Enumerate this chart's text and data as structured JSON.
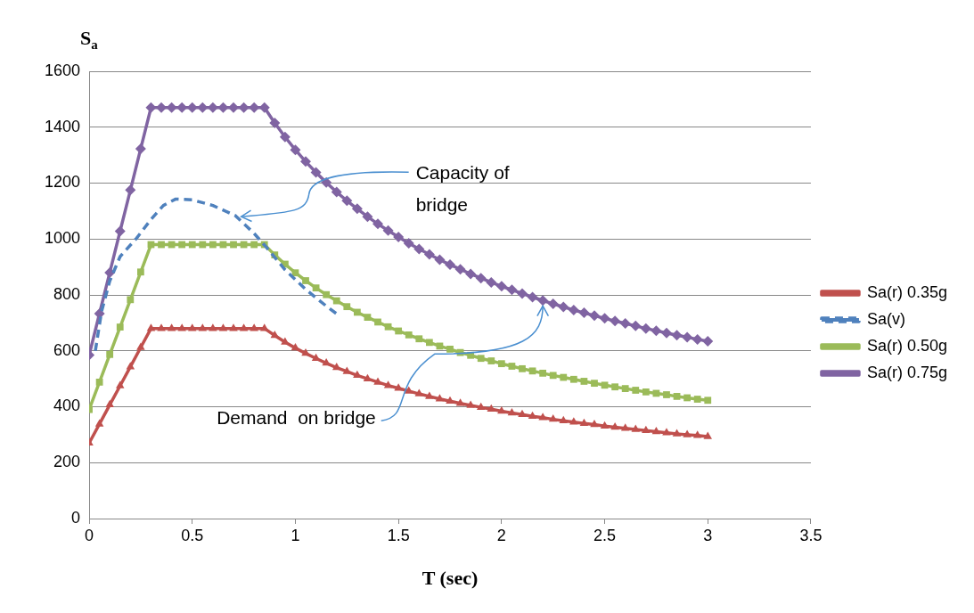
{
  "chart_data": {
    "type": "line",
    "xlabel": "T (sec)",
    "ylabel": "S$_{a}$",
    "x": [
      0,
      0.05,
      0.1,
      0.15,
      0.2,
      0.25,
      0.3,
      0.35,
      0.4,
      0.45,
      0.5,
      0.55,
      0.6,
      0.65,
      0.7,
      0.75,
      0.8,
      0.85,
      0.9,
      0.95,
      1,
      1.05,
      1.1,
      1.15,
      1.2,
      1.25,
      1.3,
      1.35,
      1.4,
      1.45,
      1.5,
      1.55,
      1.6,
      1.65,
      1.7,
      1.75,
      1.8,
      1.85,
      1.9,
      1.95,
      2,
      2.05,
      2.1,
      2.15,
      2.2,
      2.25,
      2.3,
      2.35,
      2.4,
      2.45,
      2.5,
      2.55,
      2.6,
      2.65,
      2.7,
      2.75,
      2.8,
      2.85,
      2.9,
      2.95,
      3
    ],
    "series": [
      {
        "name": "Sa(r) 0.35g",
        "color": "#c0504d",
        "marker": "triangle",
        "values": [
          270,
          338,
          407,
          475,
          543,
          612,
          680,
          680,
          680,
          680,
          680,
          680,
          680,
          680,
          680,
          680,
          680,
          680,
          655,
          631,
          610,
          591,
          573,
          556,
          540,
          526,
          512,
          500,
          488,
          476,
          466,
          456,
          446,
          437,
          428,
          420,
          412,
          405,
          398,
          391,
          384,
          378,
          372,
          366,
          361,
          355,
          350,
          345,
          340,
          336,
          331,
          327,
          323,
          319,
          315,
          311,
          307,
          303,
          300,
          297,
          293
        ]
      },
      {
        "name": "Sa(v)",
        "color": "#4f81bd",
        "marker": "none",
        "line_style": "dashed",
        "x": [
          0.03,
          0.06,
          0.1,
          0.15,
          0.23,
          0.3,
          0.36,
          0.42,
          0.5,
          0.6,
          0.71,
          0.8,
          0.86,
          0.95,
          1.05,
          1.15,
          1.21
        ],
        "values": [
          600,
          740,
          850,
          937,
          1003,
          1070,
          1120,
          1143,
          1140,
          1120,
          1083,
          1020,
          970,
          890,
          820,
          760,
          727
        ]
      },
      {
        "name": "Sa(r) 0.50g",
        "color": "#9bbb59",
        "marker": "square",
        "values": [
          390,
          488,
          587,
          685,
          783,
          882,
          980,
          980,
          980,
          980,
          980,
          980,
          980,
          980,
          980,
          980,
          980,
          980,
          943,
          910,
          879,
          851,
          825,
          801,
          779,
          758,
          738,
          720,
          703,
          686,
          671,
          657,
          643,
          630,
          617,
          606,
          594,
          584,
          573,
          564,
          554,
          545,
          536,
          528,
          520,
          512,
          505,
          498,
          491,
          484,
          477,
          471,
          465,
          459,
          453,
          448,
          443,
          437,
          432,
          427,
          423
        ]
      },
      {
        "name": "Sa(r) 0.75g",
        "color": "#8064a2",
        "marker": "diamond",
        "values": [
          585,
          733,
          880,
          1028,
          1175,
          1323,
          1470,
          1470,
          1470,
          1470,
          1470,
          1470,
          1470,
          1470,
          1470,
          1470,
          1470,
          1470,
          1415,
          1365,
          1319,
          1277,
          1238,
          1202,
          1168,
          1137,
          1108,
          1080,
          1054,
          1030,
          1007,
          985,
          964,
          945,
          926,
          908,
          892,
          875,
          860,
          845,
          831,
          818,
          805,
          792,
          780,
          768,
          757,
          746,
          736,
          726,
          716,
          707,
          698,
          689,
          680,
          672,
          664,
          656,
          649,
          641,
          634
        ]
      }
    ],
    "xlim": [
      0,
      3.5
    ],
    "xticks": [
      0,
      0.5,
      1,
      1.5,
      2,
      2.5,
      3,
      3.5
    ],
    "ylim": [
      0,
      1600
    ],
    "yticks": [
      0,
      200,
      400,
      600,
      800,
      1000,
      1200,
      1400,
      1600
    ],
    "grid": "y",
    "legend": "right",
    "annotations": [
      {
        "text": "Capacity of bridge",
        "x": 0.72,
        "y": 1080
      },
      {
        "text": "Demand  on bridge",
        "x": 2.2,
        "y": 780
      }
    ]
  }
}
